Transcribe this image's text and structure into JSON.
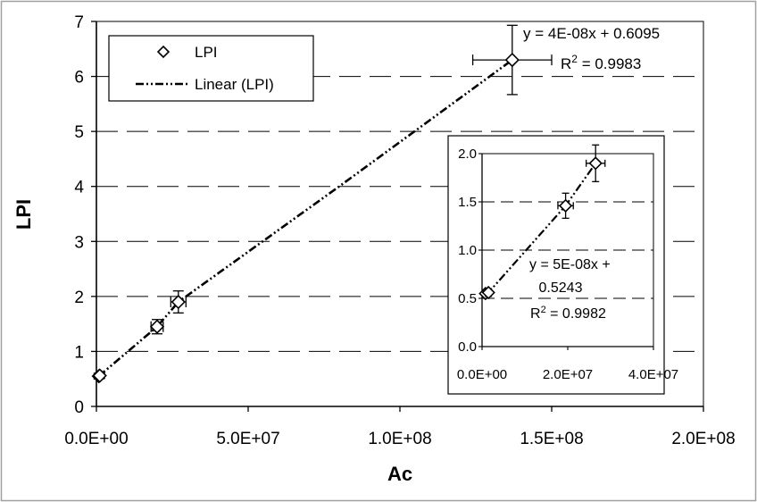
{
  "chart_data": [
    {
      "id": "main",
      "type": "scatter",
      "xlabel": "Ac",
      "ylabel": "LPI",
      "xlim": [
        0,
        200000000
      ],
      "ylim": [
        0,
        7
      ],
      "x_ticks": [
        "0.0E+00",
        "5.0E+07",
        "1.0E+08",
        "1.5E+08",
        "2.0E+08"
      ],
      "y_ticks": [
        "0",
        "1",
        "2",
        "3",
        "4",
        "5",
        "6",
        "7"
      ],
      "grid": "horizontal dashed",
      "legend": {
        "position": "top-left",
        "entries": [
          "LPI",
          "Linear (LPI)"
        ]
      },
      "series": [
        {
          "name": "LPI",
          "marker": "diamond",
          "points": [
            {
              "x": 800000,
              "y": 0.55,
              "xerr": 600000,
              "yerr": 0.05
            },
            {
              "x": 1100000,
              "y": 0.56,
              "xerr": 600000,
              "yerr": 0.05
            },
            {
              "x": 20000000,
              "y": 1.45,
              "xerr": 2000000,
              "yerr": 0.13
            },
            {
              "x": 27000000,
              "y": 1.9,
              "xerr": 2500000,
              "yerr": 0.2
            },
            {
              "x": 137000000,
              "y": 6.3,
              "xerr": 13000000,
              "yerr": 0.63
            }
          ]
        }
      ],
      "trendline": {
        "name": "Linear (LPI)",
        "x": [
          800000,
          20000000,
          27000000,
          80000000,
          137000000
        ],
        "y": [
          0.55,
          1.45,
          1.9,
          4.0,
          6.3
        ],
        "equation": "y = 4E-08x + 0.6095",
        "r2_prefix": "R",
        "r2_sup": "2",
        "r2_value": " = 0.9983"
      }
    },
    {
      "id": "inset",
      "type": "scatter",
      "xlim": [
        0,
        40000000
      ],
      "ylim": [
        0,
        2
      ],
      "x_ticks": [
        "0.0E+00",
        "2.0E+07",
        "4.0E+07"
      ],
      "y_ticks": [
        "0.0",
        "0.5",
        "1.0",
        "1.5",
        "2.0"
      ],
      "grid": "horizontal dashed",
      "series": [
        {
          "name": "LPI",
          "marker": "diamond",
          "points": [
            {
              "x": 800000,
              "y": 0.55,
              "xerr": 500000,
              "yerr": 0.04
            },
            {
              "x": 1500000,
              "y": 0.56,
              "xerr": 500000,
              "yerr": 0.04
            },
            {
              "x": 19500000,
              "y": 1.46,
              "xerr": 1800000,
              "yerr": 0.13
            },
            {
              "x": 26500000,
              "y": 1.9,
              "xerr": 2200000,
              "yerr": 0.19
            }
          ]
        }
      ],
      "trendline": {
        "x": [
          800000,
          1500000,
          19500000,
          26500000
        ],
        "y": [
          0.55,
          0.56,
          1.46,
          1.9
        ],
        "equation_line1": "y = 5E-08x +",
        "equation_line2": "0.5243",
        "r2_prefix": "R",
        "r2_sup": "2",
        "r2_value": " = 0.9982"
      }
    }
  ]
}
